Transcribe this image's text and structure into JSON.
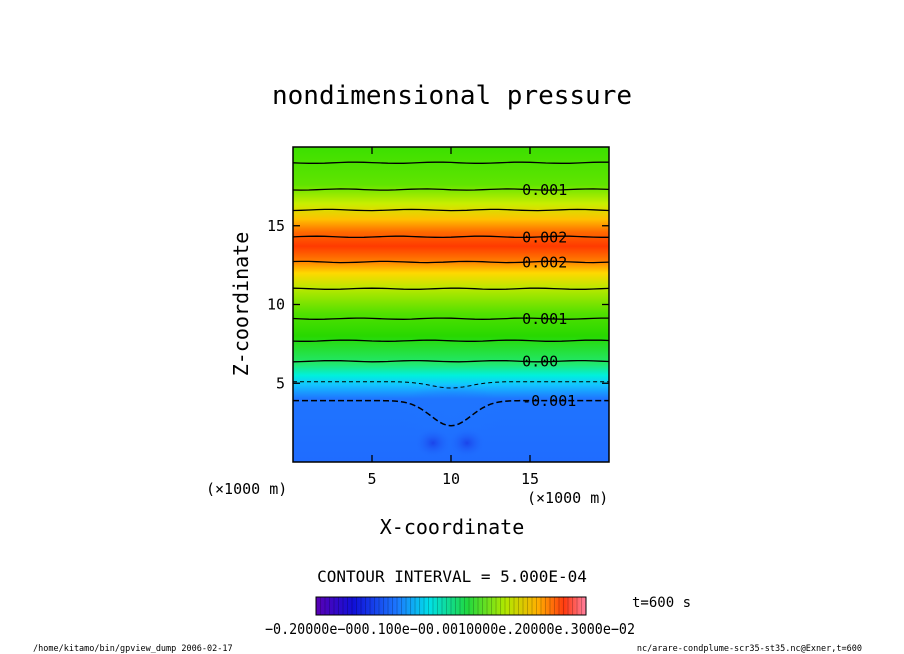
{
  "chart_data": {
    "type": "contour",
    "title": "nondimensional pressure",
    "xlabel": "X-coordinate",
    "ylabel": "Z-coordinate",
    "x_unit_label": "(×1000 m)",
    "y_unit_label": "(×1000 m)",
    "xlim": [
      0,
      20
    ],
    "ylim": [
      0,
      20
    ],
    "x_ticks": [
      5,
      10,
      15
    ],
    "y_ticks": [
      5,
      10,
      15
    ],
    "contour_interval_text": "CONTOUR INTERVAL = 5.000E-04",
    "time_text": "t=600 s",
    "contour_labels": [
      {
        "text": "0.001",
        "z": 17.3
      },
      {
        "text": "0.002",
        "z": 14.3
      },
      {
        "text": "0.002",
        "z": 12.7
      },
      {
        "text": "0.001",
        "z": 9.1
      },
      {
        "text": "0.00",
        "z": 6.4
      },
      {
        "text": "-0.001",
        "z": 3.9
      }
    ],
    "solid_contour_z": [
      19.0,
      17.3,
      16.0,
      14.3,
      12.7,
      11.0,
      9.1,
      7.7,
      6.4
    ],
    "dashed_contours": [
      {
        "z": 5.1,
        "dip": 0.4
      },
      {
        "z": 3.9,
        "dip": 1.6
      }
    ],
    "colorbar_ticks": [
      "-0.200e-02",
      "-0.100e-02",
      "0.000",
      "0.100e-02",
      "0.200e-02",
      "0.300e-02"
    ],
    "colorbar_label_text": "−0.20000e−000.100e−00.0010000e.20000e.3000e−02",
    "colors": {
      "low": "#1e66ff",
      "zero": "#00e8e0",
      "mid": "#3ce000",
      "high": "#ff3a00"
    }
  },
  "footer": {
    "left": "/home/kitamo/bin/gpview_dump  2006-02-17",
    "right": "nc/arare-condplume-scr35-st35.nc@Exner,t=600"
  }
}
